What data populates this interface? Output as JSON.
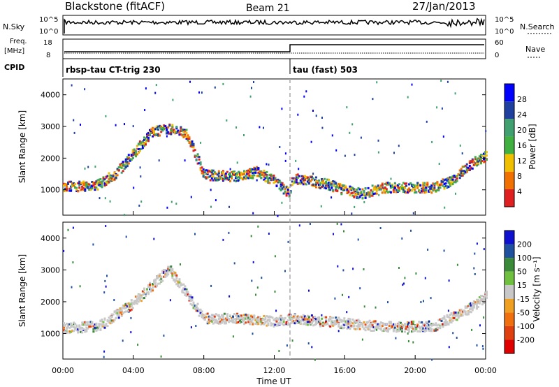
{
  "header": {
    "title": "Blackstone (fitACF)",
    "beam": "Beam 21",
    "date": "27/Jan/2013"
  },
  "summary": {
    "left_label_1": "N.Sky",
    "left_tick_top": "10^5",
    "left_tick_bottom": "10^0",
    "right_tick_top": "10^5",
    "right_tick_bottom": "10^0",
    "right_label": "N.Search"
  },
  "freq": {
    "label_1": "Freq.",
    "label_2": "[MHz]",
    "tick_top": "18",
    "tick_bottom": "8",
    "right_tick_top": "60",
    "right_tick_bottom": "0",
    "right_label": "Nave",
    "cpid_label": "CPID",
    "cpid_1": "rbsp-tau CT-trig 230",
    "cpid_2": "tau (fast) 503"
  },
  "colors": {
    "power": [
      "#0000ff",
      "#2040a0",
      "#40a070",
      "#40b040",
      "#f0c000",
      "#f07000",
      "#e02020"
    ],
    "velocity": [
      "#1010d0",
      "#2050a0",
      "#3a8a3a",
      "#70c040",
      "#c8c8c8",
      "#f0a020",
      "#f07010",
      "#e04010",
      "#e00000"
    ]
  },
  "chart_data": [
    {
      "type": "heatmap",
      "name": "power",
      "ylabel": "Slant Range [km]",
      "yticks": [
        1000,
        2000,
        3000,
        4000
      ],
      "ylim": [
        200,
        4500
      ],
      "xlim": [
        0,
        24
      ],
      "xticks": [
        "00:00",
        "04:00",
        "08:00",
        "12:00",
        "16:00",
        "20:00",
        "00:00"
      ],
      "colorbar": {
        "label": "Power [dB]",
        "ticks": [
          "28",
          "24",
          "20",
          "16",
          "12",
          "8",
          "4"
        ]
      },
      "series": [
        {
          "values": [
            [
              0,
              1150
            ],
            [
              1,
              1130
            ],
            [
              2,
              1200
            ],
            [
              3,
              1550
            ],
            [
              4,
              2200
            ],
            [
              5,
              2850
            ],
            [
              6,
              2950
            ],
            [
              7,
              2800
            ],
            [
              8,
              1500
            ],
            [
              10,
              1450
            ],
            [
              11,
              1600
            ],
            [
              12,
              1300
            ],
            [
              12.8,
              900
            ],
            [
              13,
              1400
            ],
            [
              14,
              1300
            ],
            [
              15,
              1200
            ],
            [
              16,
              1000
            ],
            [
              17,
              900
            ],
            [
              18,
              1100
            ],
            [
              20,
              1100
            ],
            [
              21,
              1100
            ],
            [
              22,
              1300
            ],
            [
              23,
              1800
            ],
            [
              24,
              2100
            ]
          ]
        }
      ]
    },
    {
      "type": "heatmap",
      "name": "velocity",
      "ylabel": "Slant Range [km]",
      "yticks": [
        1000,
        2000,
        3000,
        4000
      ],
      "ylim": [
        200,
        4500
      ],
      "xlim": [
        0,
        24
      ],
      "xlabel": "Time UT",
      "xticks": [
        "00:00",
        "04:00",
        "08:00",
        "12:00",
        "16:00",
        "20:00",
        "00:00"
      ],
      "colorbar": {
        "label": "Velocity [m s⁻¹]",
        "ticks": [
          "200",
          "100",
          "50",
          "15",
          "-15",
          "-50",
          "-100",
          "-200"
        ]
      },
      "series": [
        {
          "values": [
            [
              0,
              1200
            ],
            [
              2,
              1250
            ],
            [
              4,
              2000
            ],
            [
              6,
              3050
            ],
            [
              8,
              1500
            ],
            [
              10,
              1500
            ],
            [
              12,
              1400
            ],
            [
              13,
              1500
            ],
            [
              15,
              1400
            ],
            [
              18,
              1250
            ],
            [
              21,
              1250
            ],
            [
              23,
              1800
            ],
            [
              24,
              2200
            ]
          ]
        }
      ]
    }
  ]
}
